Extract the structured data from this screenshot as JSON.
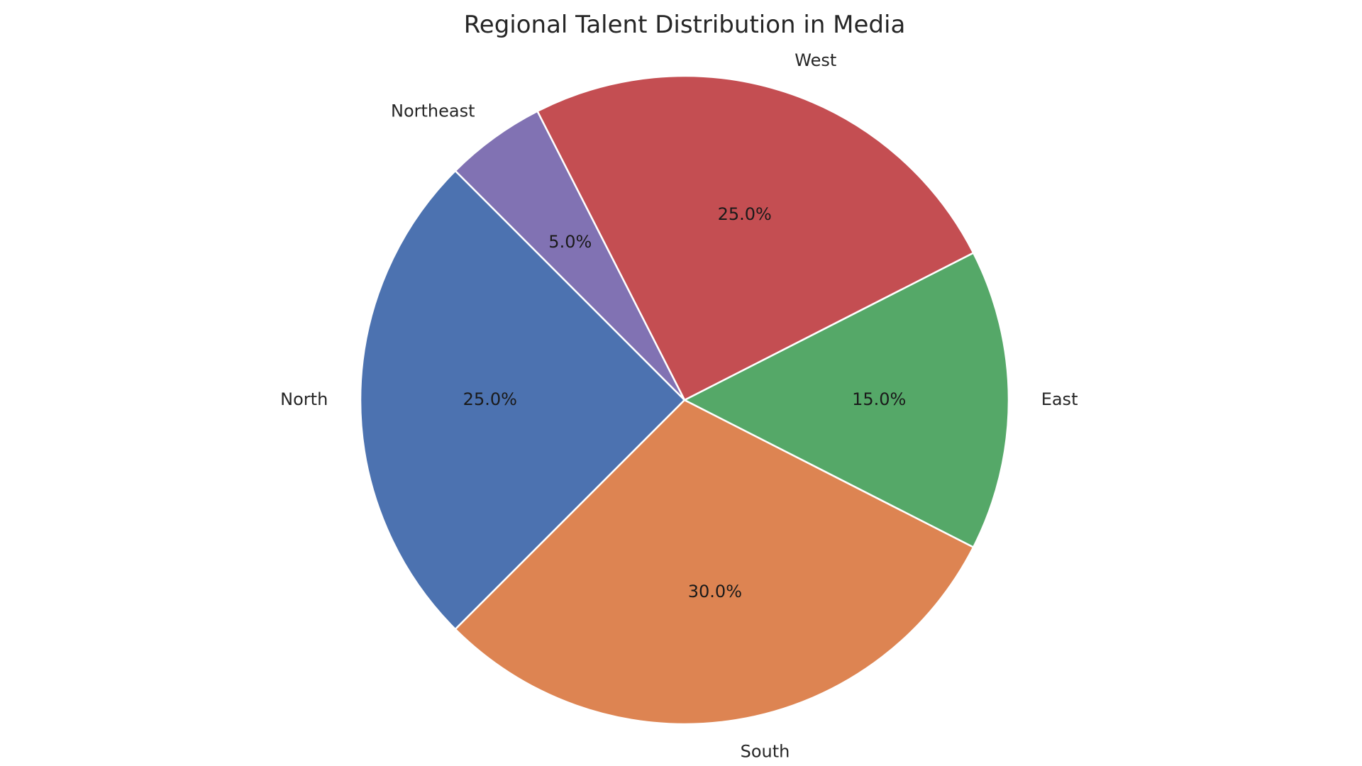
{
  "chart_data": {
    "type": "pie",
    "title": "Regional Talent Distribution in Media",
    "start_angle_deg": 135,
    "direction": "counterclockwise",
    "slices": [
      {
        "label": "North",
        "value": 25.0,
        "pct_label": "25.0%",
        "color": "#4c72b0"
      },
      {
        "label": "South",
        "value": 30.0,
        "pct_label": "30.0%",
        "color": "#dd8452"
      },
      {
        "label": "East",
        "value": 15.0,
        "pct_label": "15.0%",
        "color": "#55a868"
      },
      {
        "label": "West",
        "value": 25.0,
        "pct_label": "25.0%",
        "color": "#c44e52"
      },
      {
        "label": "Northeast",
        "value": 5.0,
        "pct_label": "5.0%",
        "color": "#8172b3"
      }
    ]
  }
}
